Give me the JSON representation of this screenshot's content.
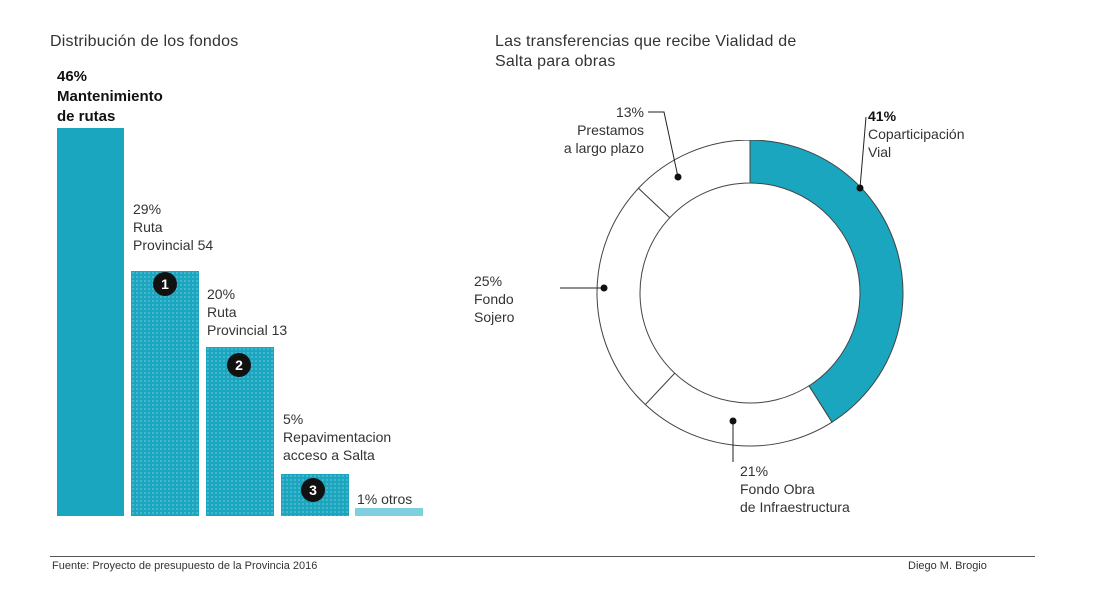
{
  "bar_chart": {
    "title": "Distribución de los fondos",
    "bar_color": "#1aa6bf",
    "bars": [
      {
        "pct": "46%",
        "line1": "Mantenimiento",
        "line2": "de rutas",
        "badge": ""
      },
      {
        "pct": "29%",
        "line1": "Ruta",
        "line2": "Provincial 54",
        "badge": "1"
      },
      {
        "pct": "20%",
        "line1": "Ruta",
        "line2": "Provincial 13",
        "badge": "2"
      },
      {
        "pct": "5%",
        "line1": "Repavimentacion",
        "line2": "acceso a Salta",
        "badge": "3"
      },
      {
        "pct": "1% otros",
        "line1": "",
        "line2": "",
        "badge": ""
      }
    ]
  },
  "donut_chart": {
    "title_line1": "Las transferencias que recibe Vialidad de",
    "title_line2": "Salta para obras",
    "accent_color": "#1aa6bf",
    "segments": [
      {
        "pct": "41%",
        "line1": "Coparticipación",
        "line2": "Vial"
      },
      {
        "pct": "21%",
        "line1": "Fondo Obra",
        "line2": "de Infraestructura"
      },
      {
        "pct": "25%",
        "line1": "Fondo",
        "line2": "Sojero"
      },
      {
        "pct": "13%",
        "line1": "Prestamos",
        "line2": "a largo plazo"
      }
    ]
  },
  "chart_data": [
    {
      "type": "bar",
      "title": "Distribución de los fondos",
      "categories": [
        "Mantenimiento de rutas",
        "Ruta Provincial 54",
        "Ruta Provincial 13",
        "Repavimentacion acceso a Salta",
        "otros"
      ],
      "values": [
        46,
        29,
        20,
        5,
        1
      ]
    },
    {
      "type": "pie",
      "title": "Las transferencias que recibe Vialidad de Salta para obras",
      "categories": [
        "Coparticipación Vial",
        "Fondo Obra de Infraestructura",
        "Fondo Sojero",
        "Prestamos a largo plazo"
      ],
      "values": [
        41,
        21,
        25,
        13
      ]
    }
  ],
  "footer": {
    "source": "Fuente: Proyecto de presupuesto de la Provincia 2016",
    "author": "Diego M. Brogio"
  }
}
